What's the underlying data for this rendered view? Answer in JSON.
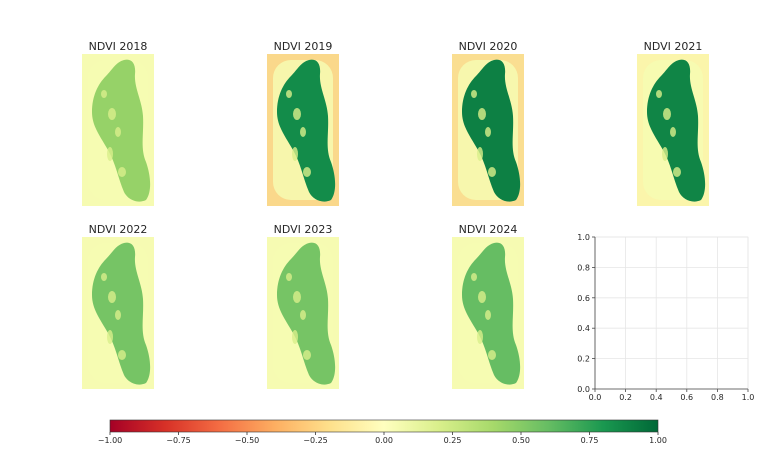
{
  "chart_data": {
    "type": "heatmap",
    "panels": [
      {
        "title": "NDVI 2018",
        "island_level": 0.45,
        "shore_level": 0.05
      },
      {
        "title": "NDVI 2019",
        "island_level": 0.85,
        "shore_level": -0.35
      },
      {
        "title": "NDVI 2020",
        "island_level": 0.9,
        "shore_level": -0.3
      },
      {
        "title": "NDVI 2021",
        "island_level": 0.88,
        "shore_level": -0.1
      },
      {
        "title": "NDVI 2022",
        "island_level": 0.55,
        "shore_level": 0.05
      },
      {
        "title": "NDVI 2023",
        "island_level": 0.55,
        "shore_level": 0.05
      },
      {
        "title": "NDVI 2024",
        "island_level": 0.6,
        "shore_level": 0.05
      }
    ],
    "empty_axes": {
      "xlim": [
        0,
        1
      ],
      "ylim": [
        0,
        1
      ],
      "xticks": [
        "0.0",
        "0.2",
        "0.4",
        "0.6",
        "0.8",
        "1.0"
      ],
      "yticks": [
        "0.0",
        "0.2",
        "0.4",
        "0.6",
        "0.8",
        "1.0"
      ],
      "grid": true
    },
    "colorbar": {
      "colormap": "RdYlGn",
      "range": [
        -1,
        1
      ],
      "ticks": [
        "−1.00",
        "−0.75",
        "−0.50",
        "−0.25",
        "0.00",
        "0.25",
        "0.50",
        "0.75",
        "1.00"
      ],
      "orientation": "horizontal",
      "placement": "bottom"
    }
  }
}
